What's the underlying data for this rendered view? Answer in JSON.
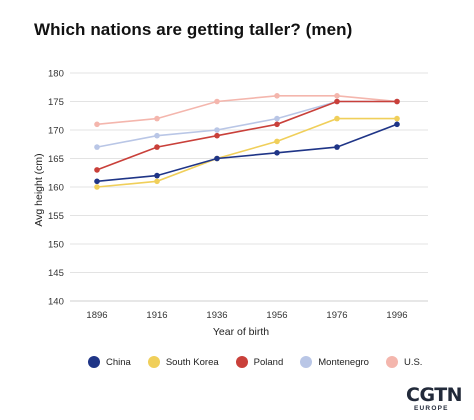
{
  "title": "Which nations are getting taller? (men)",
  "chart_data": {
    "type": "line",
    "title": "Which nations are getting taller? (men)",
    "xlabel": "Year of birth",
    "ylabel": "Avg height (cm)",
    "x": [
      1896,
      1916,
      1936,
      1956,
      1976,
      1996
    ],
    "ylim": [
      140,
      180
    ],
    "yticks": [
      140,
      145,
      150,
      155,
      160,
      165,
      170,
      175,
      180
    ],
    "grid": true,
    "legend_position": "bottom",
    "series": [
      {
        "name": "U.S.",
        "color": "#f4b6ad",
        "values": [
          171,
          172,
          175,
          176,
          176,
          175
        ]
      },
      {
        "name": "Montenegro",
        "color": "#b9c6e6",
        "values": [
          167,
          169,
          170,
          172,
          175,
          175
        ]
      },
      {
        "name": "Poland",
        "color": "#c9403a",
        "values": [
          163,
          167,
          169,
          171,
          175,
          175
        ]
      },
      {
        "name": "South Korea",
        "color": "#f0cf5a",
        "values": [
          160,
          161,
          165,
          168,
          172,
          172
        ]
      },
      {
        "name": "China",
        "color": "#1f3587",
        "values": [
          161,
          162,
          165,
          166,
          167,
          171
        ]
      }
    ]
  },
  "legend": [
    {
      "label": "China",
      "color": "#1f3587"
    },
    {
      "label": "South Korea",
      "color": "#f0cf5a"
    },
    {
      "label": "Poland",
      "color": "#c9403a"
    },
    {
      "label": "Montenegro",
      "color": "#b9c6e6"
    },
    {
      "label": "U.S.",
      "color": "#f4b6ad"
    }
  ],
  "brand": {
    "main": "CGTN",
    "sub": "EUROPE"
  }
}
